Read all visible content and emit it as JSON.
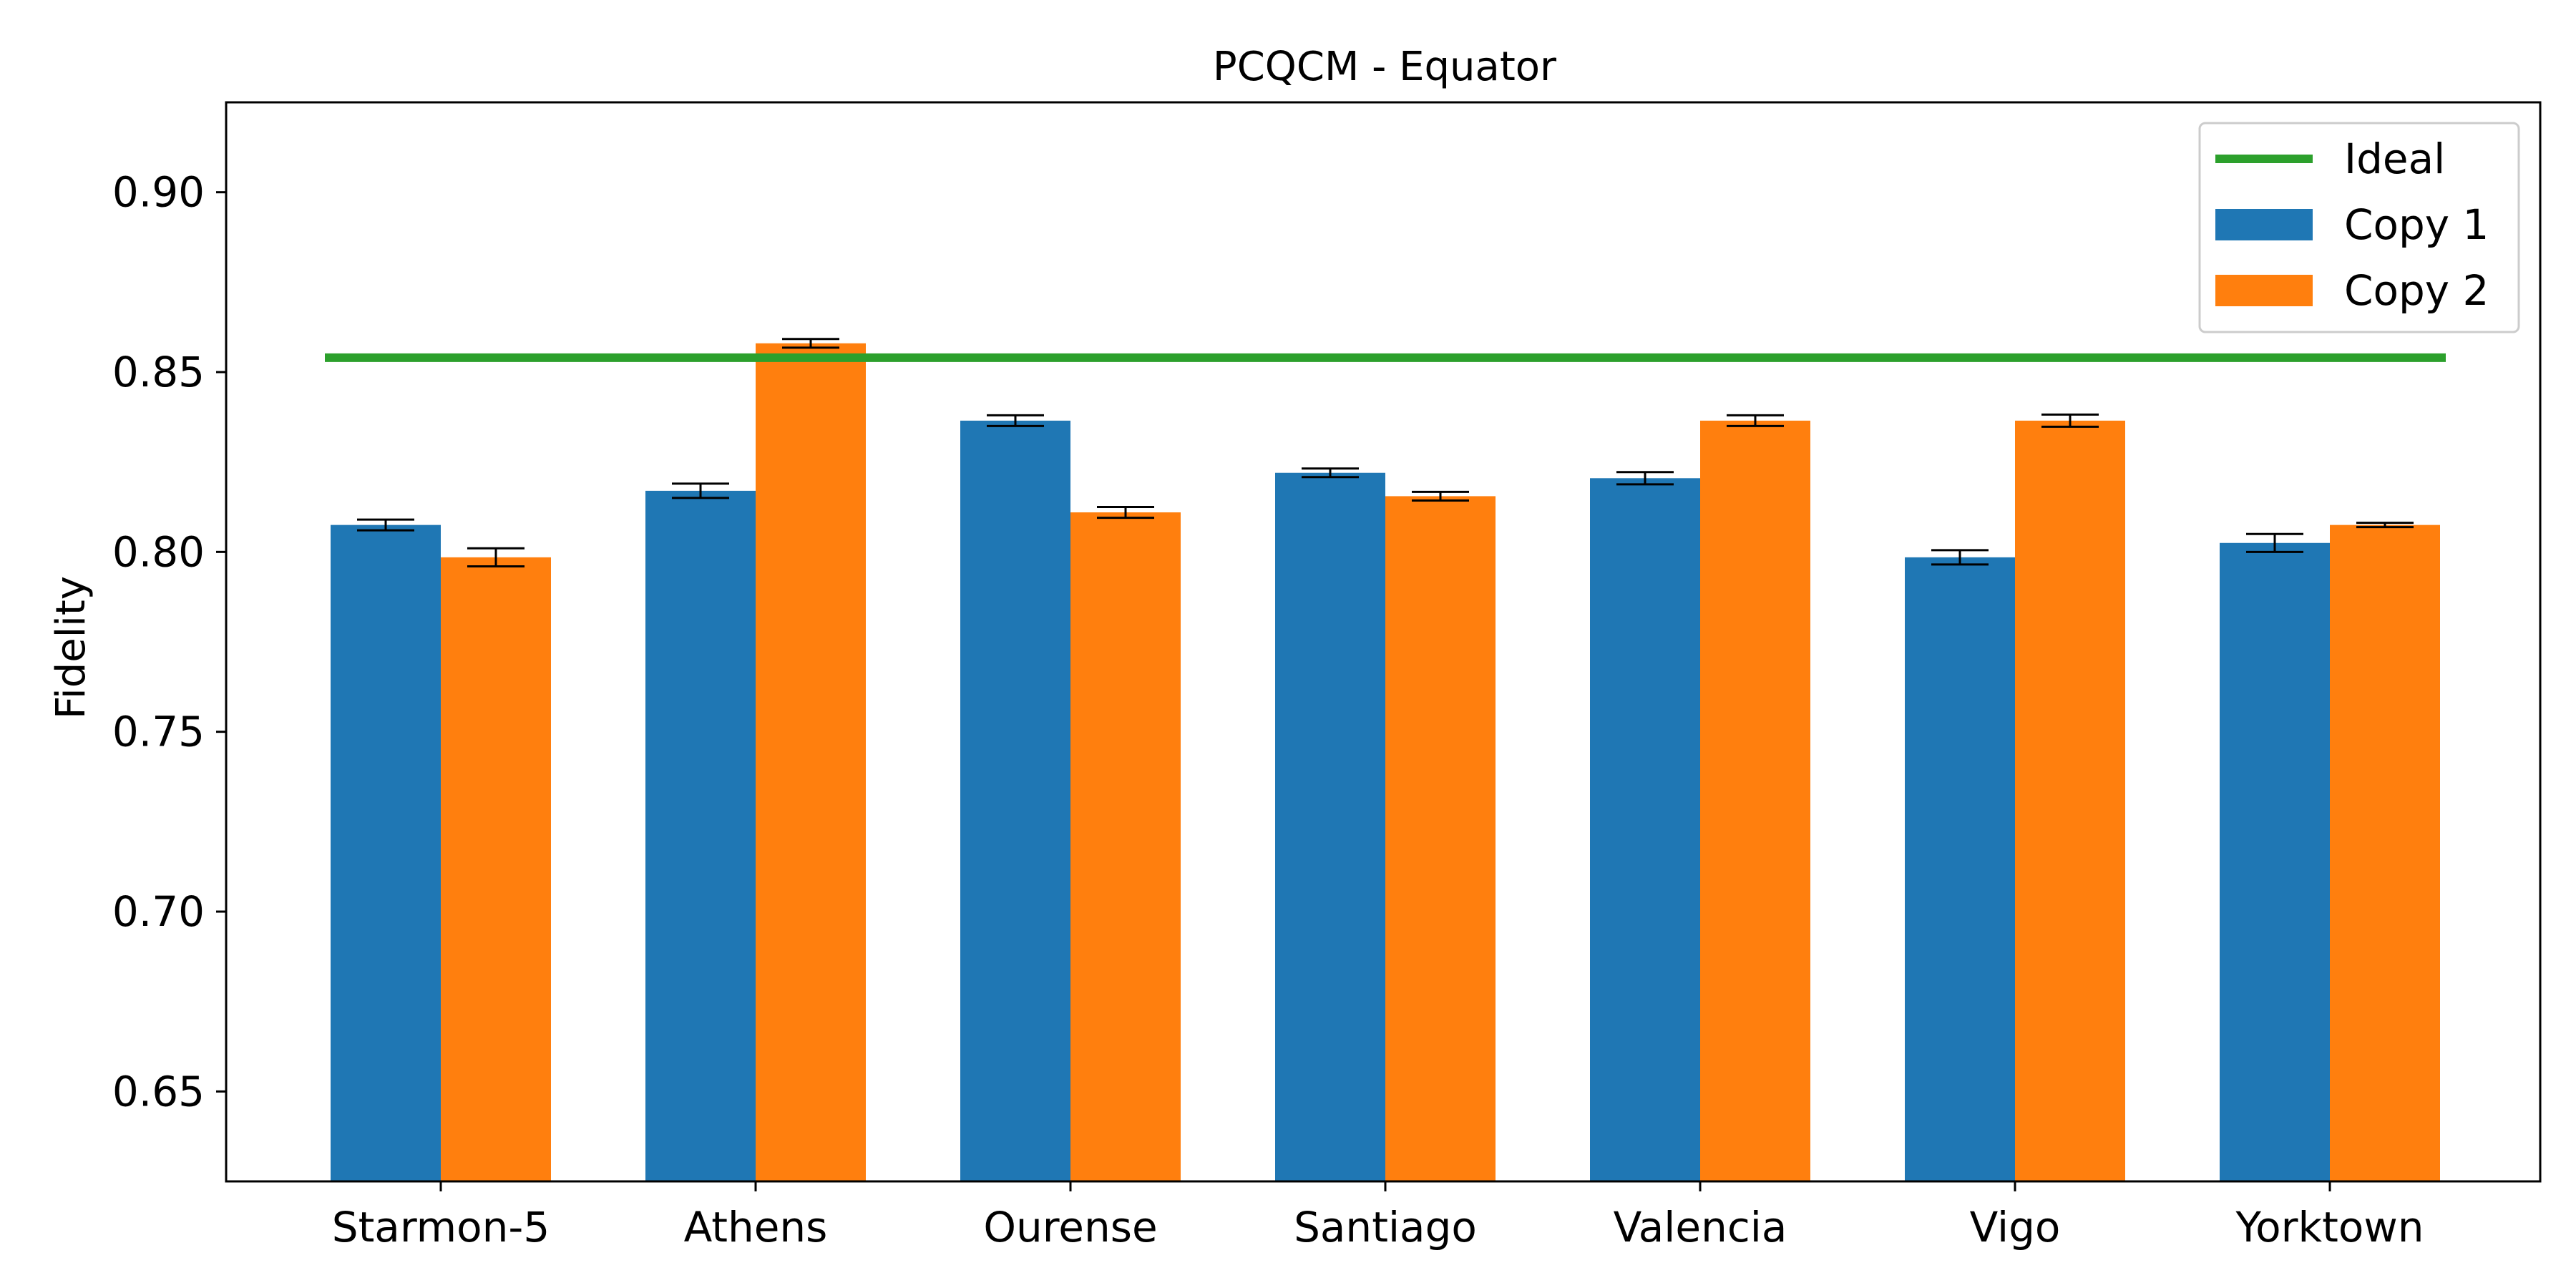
{
  "chart_data": {
    "type": "bar",
    "title": "PCQCM - Equator",
    "xlabel": "",
    "ylabel": "Fidelity",
    "ylim": [
      0.625,
      0.925
    ],
    "yticks": [
      "0.65",
      "0.70",
      "0.75",
      "0.80",
      "0.85",
      "0.90"
    ],
    "categories": [
      "Starmon-5",
      "Athens",
      "Ourense",
      "Santiago",
      "Valencia",
      "Vigo",
      "Yorktown"
    ],
    "series": [
      {
        "name": "Copy 1",
        "color": "#1f77b4",
        "values": [
          0.8075,
          0.817,
          0.8365,
          0.822,
          0.8205,
          0.7985,
          0.8025
        ],
        "errors": [
          0.0015,
          0.002,
          0.0015,
          0.0012,
          0.0017,
          0.002,
          0.0025
        ]
      },
      {
        "name": "Copy 2",
        "color": "#ff7f0e",
        "values": [
          0.7985,
          0.858,
          0.811,
          0.8155,
          0.8365,
          0.8365,
          0.8075
        ],
        "errors": [
          0.0025,
          0.0012,
          0.0015,
          0.0012,
          0.0015,
          0.0017,
          0.0006
        ]
      }
    ],
    "reference": {
      "name": "Ideal",
      "value": 0.854,
      "color": "#2ca02c"
    },
    "legend_position": "top-right",
    "grid": false
  }
}
